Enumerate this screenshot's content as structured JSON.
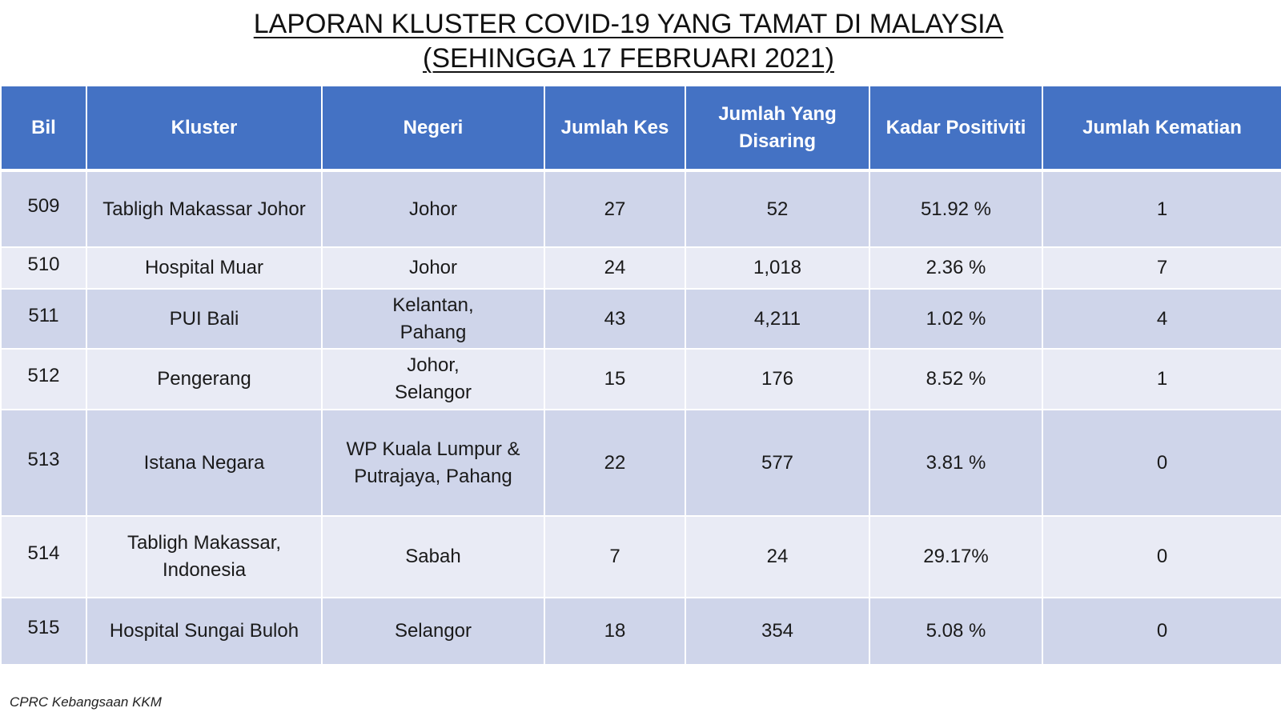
{
  "title": {
    "line1": "LAPORAN KLUSTER COVID-19 YANG TAMAT DI MALAYSIA",
    "line2": "(SEHINGGA 17 FEBRUARI 2021)"
  },
  "table": {
    "headers": [
      "Bil",
      "Kluster",
      "Negeri",
      "Jumlah Kes",
      "Jumlah Yang Disaring",
      "Kadar Positiviti",
      "Jumlah Kematian"
    ],
    "rows": [
      {
        "bil": "509",
        "kluster": "Tabligh Makassar Johor",
        "negeri": "Johor",
        "kes": "27",
        "disaring": "52",
        "positiviti": "51.92 %",
        "kematian": "1"
      },
      {
        "bil": "510",
        "kluster": "Hospital Muar",
        "negeri": "Johor",
        "kes": "24",
        "disaring": "1,018",
        "positiviti": "2.36 %",
        "kematian": "7"
      },
      {
        "bil": "511",
        "kluster": "PUI Bali",
        "negeri": "Kelantan, Pahang",
        "kes": "43",
        "disaring": "4,211",
        "positiviti": "1.02 %",
        "kematian": "4"
      },
      {
        "bil": "512",
        "kluster": "Pengerang",
        "negeri": "Johor, Selangor",
        "kes": "15",
        "disaring": "176",
        "positiviti": "8.52 %",
        "kematian": "1"
      },
      {
        "bil": "513",
        "kluster": "Istana Negara",
        "negeri": "WP Kuala Lumpur & Putrajaya, Pahang",
        "kes": "22",
        "disaring": "577",
        "positiviti": "3.81 %",
        "kematian": "0"
      },
      {
        "bil": "514",
        "kluster": "Tabligh Makassar, Indonesia",
        "negeri": "Sabah",
        "kes": "7",
        "disaring": "24",
        "positiviti": "29.17%",
        "kematian": "0"
      },
      {
        "bil": "515",
        "kluster": "Hospital Sungai Buloh",
        "negeri": "Selangor",
        "kes": "18",
        "disaring": "354",
        "positiviti": "5.08 %",
        "kematian": "0"
      }
    ]
  },
  "footer": {
    "source": "CPRC Kebangsaan KKM"
  }
}
